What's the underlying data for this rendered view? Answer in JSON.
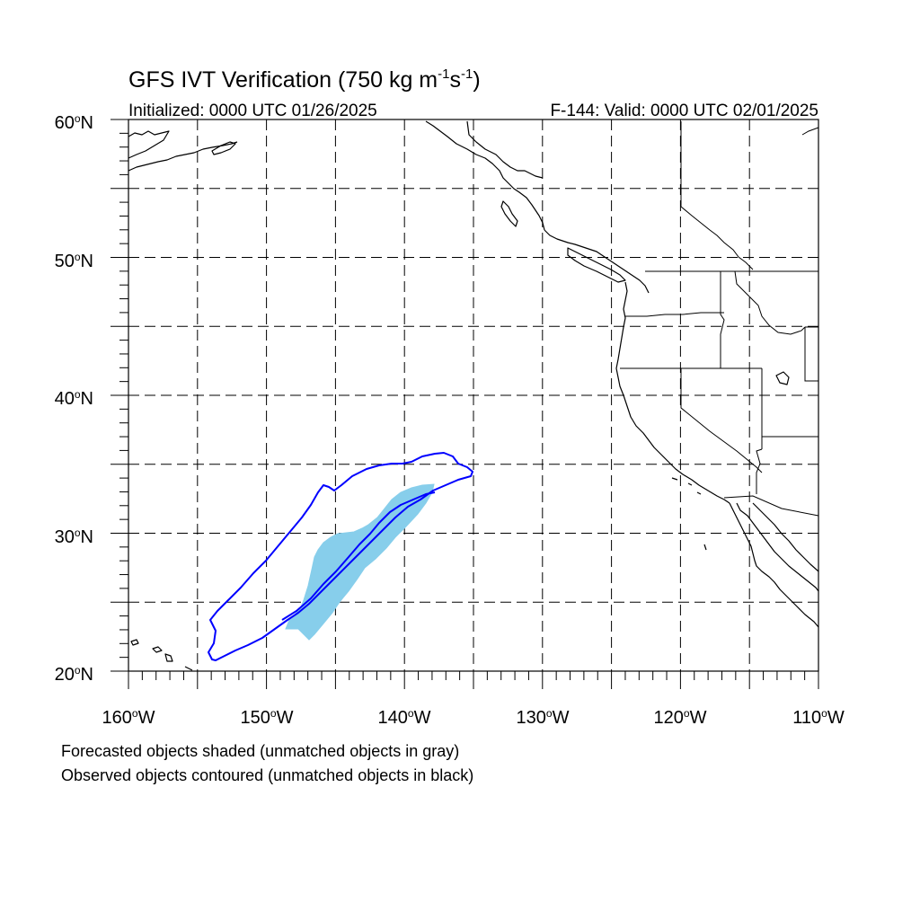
{
  "title": {
    "main": "GFS IVT Verification (750 kg m",
    "sup1": "-1",
    "mid": "s",
    "sup2": "-1",
    "end": ")"
  },
  "initialized": "Initialized: 0000 UTC 01/26/2025",
  "valid": "F-144: Valid: 0000 UTC 02/01/2025",
  "lat_labels": [
    {
      "deg": "60",
      "hemi": "N"
    },
    {
      "deg": "50",
      "hemi": "N"
    },
    {
      "deg": "40",
      "hemi": "N"
    },
    {
      "deg": "30",
      "hemi": "N"
    },
    {
      "deg": "20",
      "hemi": "N"
    }
  ],
  "lon_labels": [
    {
      "deg": "160",
      "hemi": "W"
    },
    {
      "deg": "150",
      "hemi": "W"
    },
    {
      "deg": "140",
      "hemi": "W"
    },
    {
      "deg": "130",
      "hemi": "W"
    },
    {
      "deg": "120",
      "hemi": "W"
    },
    {
      "deg": "110",
      "hemi": "W"
    }
  ],
  "captions": [
    "Forecasted objects shaded (unmatched objects in gray)",
    "Observed objects contoured (unmatched objects in black)"
  ],
  "map": {
    "lon_range": [
      -160,
      -110
    ],
    "lat_range": [
      20,
      60
    ],
    "grid_spacing_deg": 5,
    "colors": {
      "forecast_shade": "#87ceeb",
      "observed_contour": "#0000ff",
      "coastline": "#000000"
    }
  }
}
